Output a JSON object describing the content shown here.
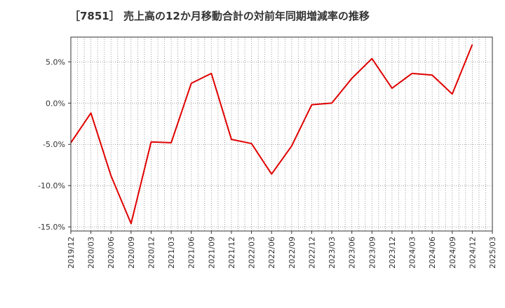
{
  "chart_data": {
    "type": "line",
    "title": "［7851］ 売上高の12か月移動合計の対前年同期増減率の推移",
    "xlabel": "",
    "ylabel": "",
    "x": [
      "2019/12",
      "2020/03",
      "2020/06",
      "2020/09",
      "2020/12",
      "2021/03",
      "2021/06",
      "2021/09",
      "2021/12",
      "2022/03",
      "2022/06",
      "2022/09",
      "2022/12",
      "2023/03",
      "2023/06",
      "2023/09",
      "2023/12",
      "2024/03",
      "2024/06",
      "2024/09",
      "2024/12",
      "2025/03"
    ],
    "series": [
      {
        "name": "売上高の12か月移動合計の対前年同期増減率",
        "color": "#e00000",
        "values": [
          -4.8,
          -1.2,
          -8.8,
          -14.6,
          -4.7,
          -4.8,
          2.4,
          3.6,
          -4.4,
          -4.9,
          -8.6,
          -5.2,
          -0.2,
          0.0,
          3.0,
          5.4,
          1.8,
          3.6,
          3.4,
          1.1,
          7.1,
          null
        ]
      }
    ],
    "ylim": [
      -15.5,
      8.0
    ],
    "yticks": [
      5.0,
      0.0,
      -5.0,
      -10.0,
      -15.0
    ],
    "ytick_labels": [
      "5.0%",
      "0.0%",
      "-5.0%",
      "-10.0%",
      "-15.0%"
    ],
    "grid": true
  }
}
